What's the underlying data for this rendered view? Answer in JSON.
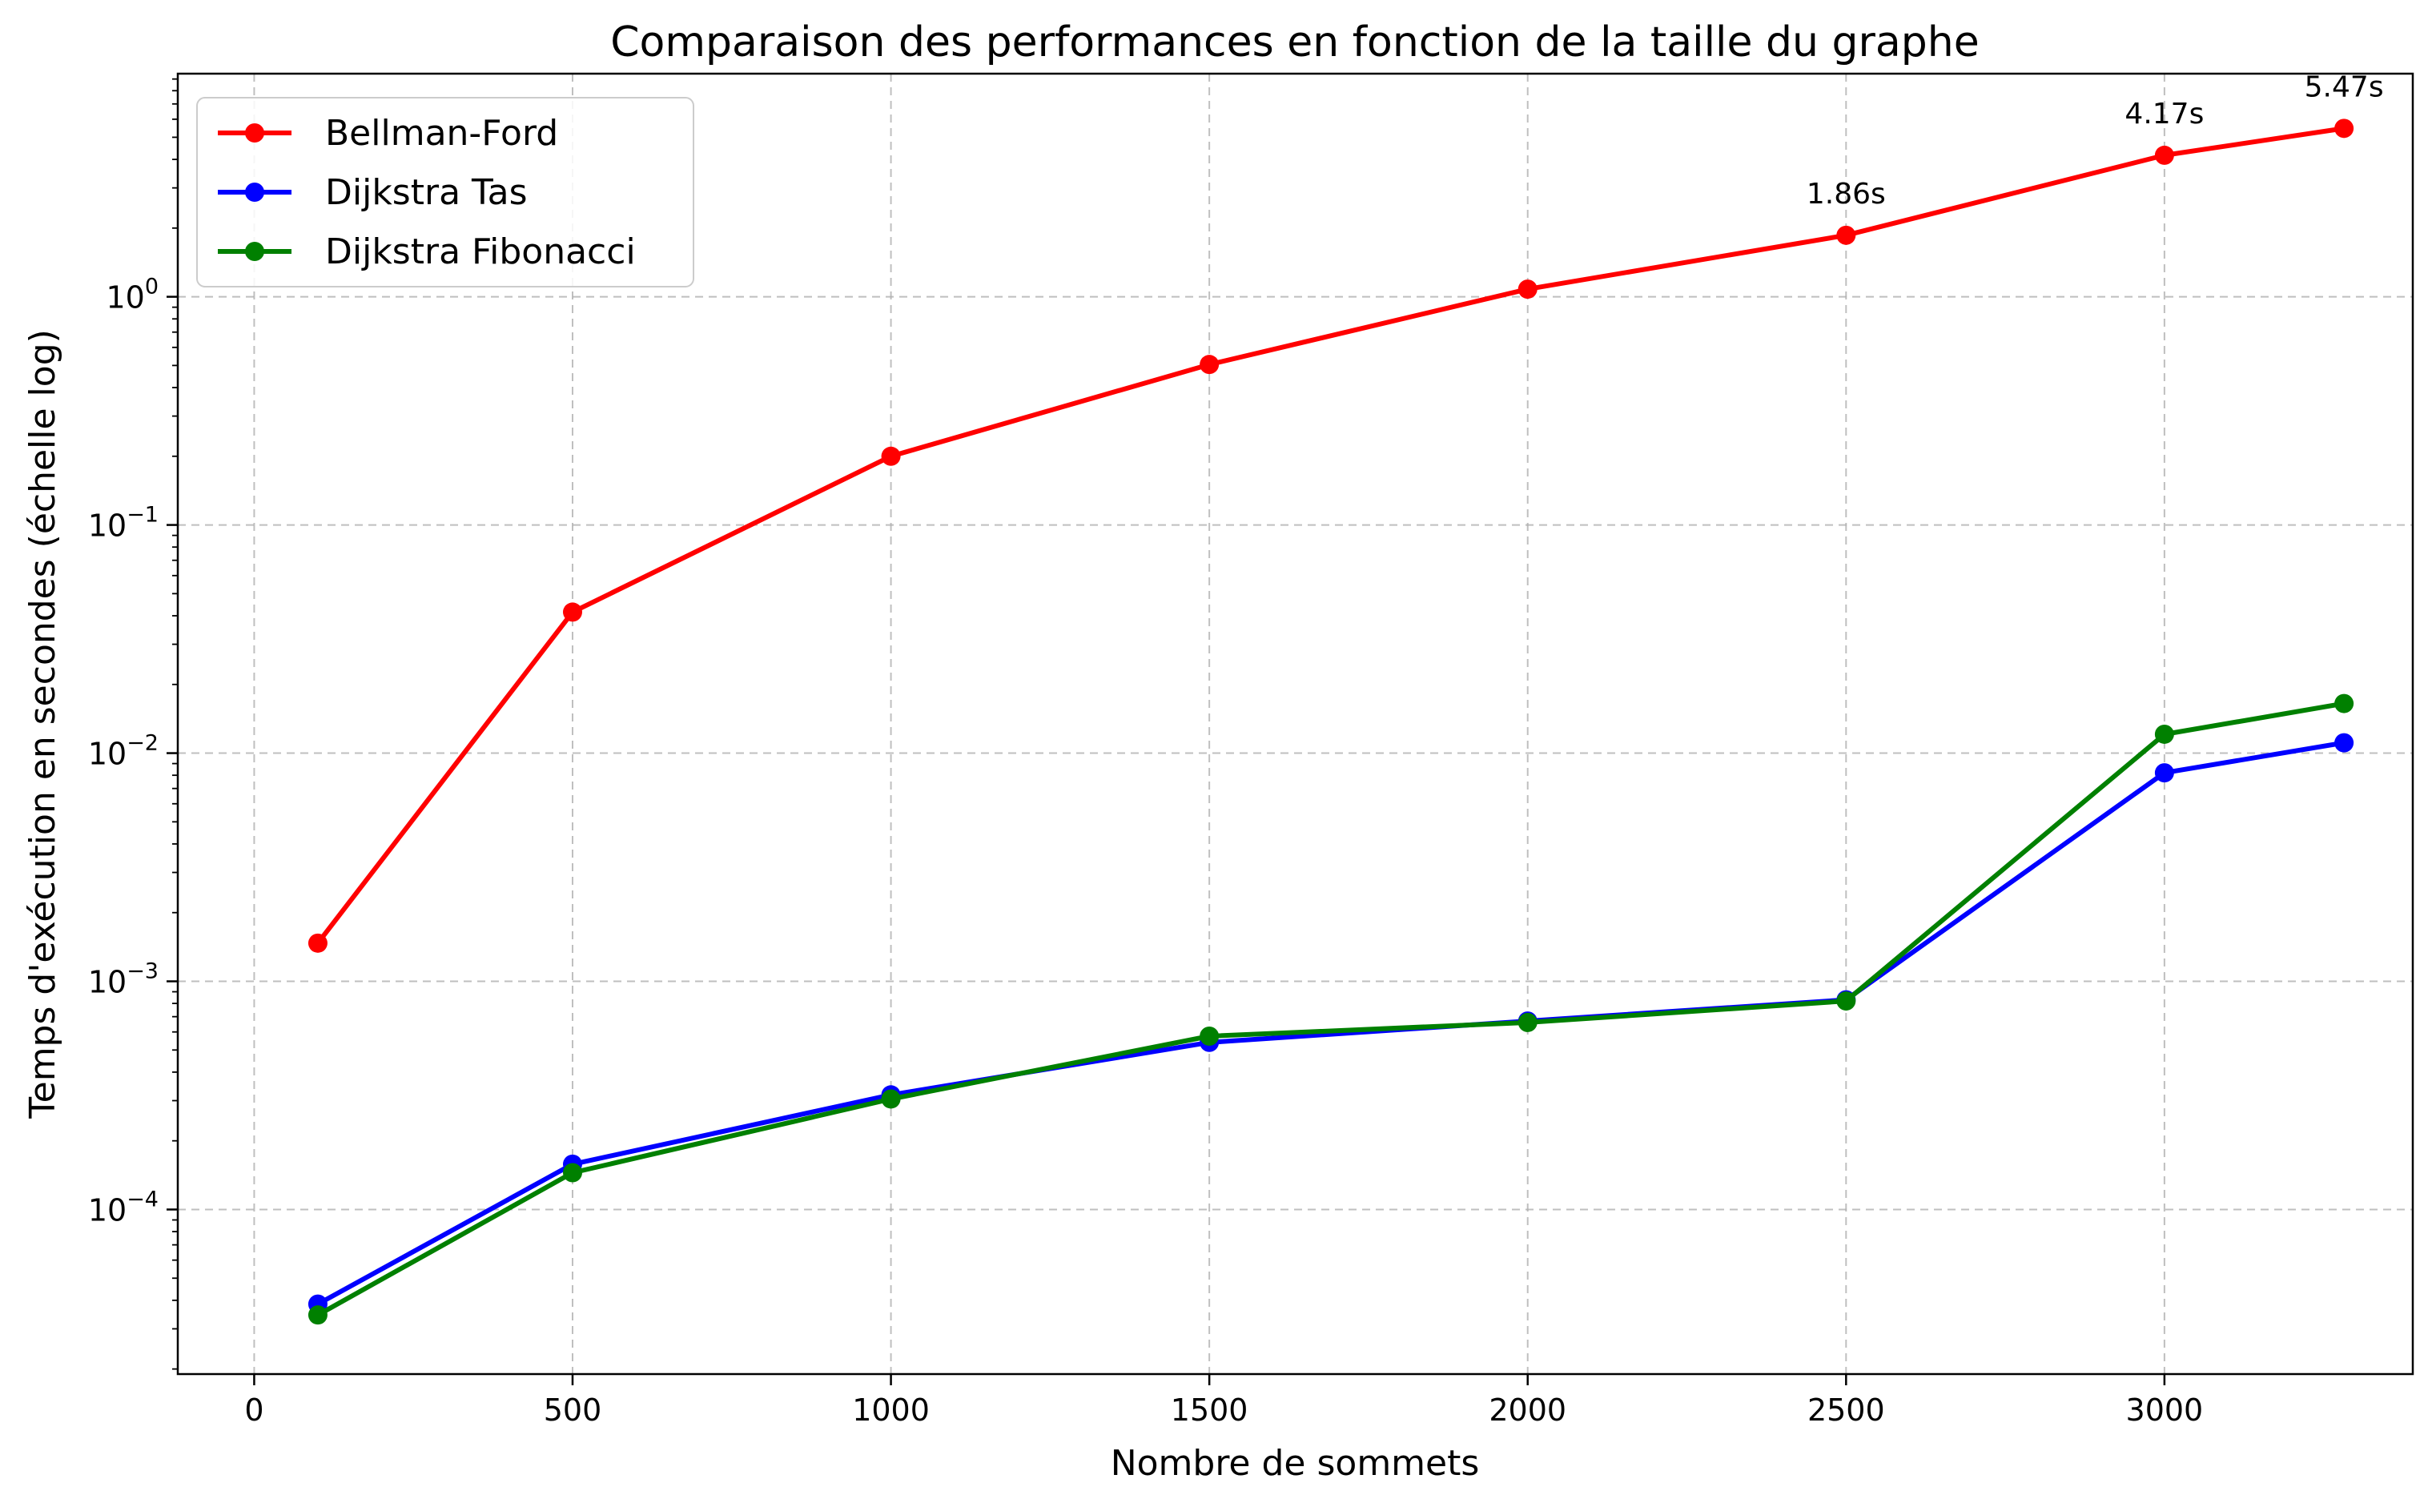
{
  "chart_data": {
    "type": "line",
    "title": "Comparaison des performances en fonction de la taille du graphe",
    "xlabel": "Nombre de sommets",
    "ylabel": "Temps d'exécution en secondes (échelle log)",
    "xscale": "linear",
    "yscale": "log",
    "xlim": [
      -120,
      3390
    ],
    "ylim": [
      1.9e-05,
      9.5
    ],
    "x_ticks": [
      0,
      500,
      1000,
      1500,
      2000,
      2500,
      3000
    ],
    "x_tick_labels": [
      "0",
      "500",
      "1000",
      "1500",
      "2000",
      "2500",
      "3000"
    ],
    "y_ticks": [
      0.0001,
      0.001,
      0.01,
      0.1,
      1
    ],
    "y_tick_labels": [
      {
        "base": "10",
        "exp": "−4"
      },
      {
        "base": "10",
        "exp": "−3"
      },
      {
        "base": "10",
        "exp": "−2"
      },
      {
        "base": "10",
        "exp": "−1"
      },
      {
        "base": "10",
        "exp": "0"
      }
    ],
    "grid": true,
    "legend_position": "top-left",
    "x": [
      100,
      500,
      1000,
      1500,
      2000,
      2500,
      3000,
      3282
    ],
    "series": [
      {
        "name": "Bellman-Ford",
        "color": "#ff0000",
        "values": [
          0.00147,
          0.0415,
          0.2,
          0.505,
          1.08,
          1.86,
          4.17,
          5.47
        ]
      },
      {
        "name": "Dijkstra Tas",
        "color": "#0000ff",
        "values": [
          3.85e-05,
          0.000158,
          0.000318,
          0.00054,
          0.00067,
          0.00083,
          0.0082,
          0.0111
        ]
      },
      {
        "name": "Dijkstra Fibonacci",
        "color": "#008000",
        "values": [
          3.45e-05,
          0.000145,
          0.000305,
          0.000575,
          0.00066,
          0.00082,
          0.0121,
          0.0165
        ]
      }
    ],
    "annotations": [
      {
        "x": 2500,
        "y": 1.86,
        "text": "1.86s"
      },
      {
        "x": 3000,
        "y": 4.17,
        "text": "4.17s"
      },
      {
        "x": 3282,
        "y": 5.47,
        "text": "5.47s"
      }
    ]
  }
}
